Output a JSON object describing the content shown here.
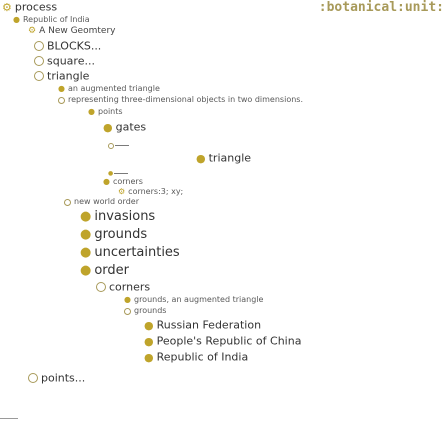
{
  "header": {
    "title": "process",
    "title_icon": "gear-icon",
    "right_label": ":botanical:unit:"
  },
  "tree": {
    "republic_india": "Republic of India",
    "new_geometry": "A New Geomtery",
    "blocks": "BLOCKS...",
    "square": "square...",
    "triangle": "triangle",
    "augmented_triangle": "an augmented triangle",
    "representing": "representing three-dimensional objects in two dimensions.",
    "points": "points",
    "gates": "gates",
    "triangle_2": "triangle",
    "corners": "corners",
    "corners_detail": "corners:3; xy;",
    "new_world_order": "new world order",
    "invasions": "invasions",
    "grounds": "grounds",
    "uncertainties": "uncertainties",
    "order": "order",
    "corners_2": "corners",
    "grounds_augmented": "grounds, an augmented triangle",
    "grounds_2": "grounds",
    "russian_federation": "Russian Federation",
    "prc": "People's Republic of China",
    "republic_india_2": "Republic of India",
    "points_2": "points..."
  },
  "colors": {
    "accent": "#bfa42b",
    "circle": "#a89a5a",
    "text": "#333333"
  }
}
